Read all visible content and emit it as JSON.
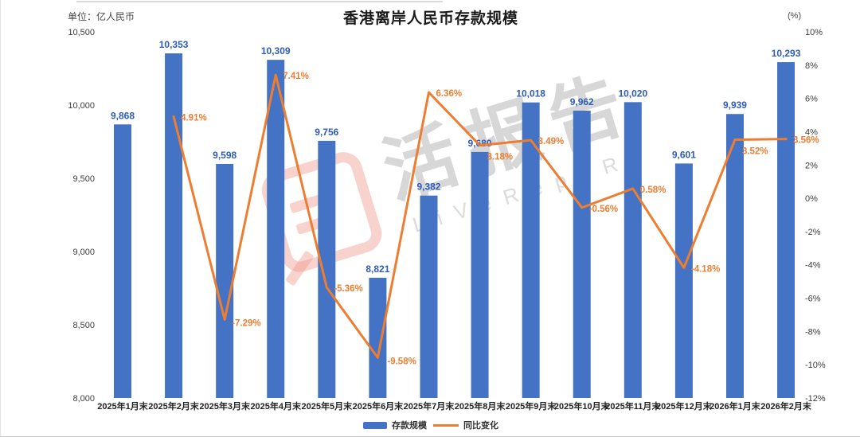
{
  "title": "香港离岸人民币存款规模",
  "unit_label": "单位：亿人民币",
  "right_axis_header": "(%)",
  "watermark": {
    "icon": "livereport-logo",
    "text_cn": "活报告",
    "text_en": "LiVeRepoRt"
  },
  "legend": {
    "bar_label": "存款规模",
    "line_label": "同比变化"
  },
  "colors": {
    "bar": "#4472C4",
    "bar_value_label": "#2E5CB8",
    "line": "#ED7D31",
    "line_value_label": "#ED7D31",
    "axis_text": "#3d3d3d",
    "category_text": "#222222"
  },
  "chart_data": {
    "type": "bar+line combo",
    "title": "香港离岸人民币存款规模",
    "categories": [
      "2025年1月末",
      "2025年2月末",
      "2025年3月末",
      "2025年4月末",
      "2025年5月末",
      "2025年6月末",
      "2025年7月末",
      "2025年8月末",
      "2025年9月末",
      "2025年10月末",
      "2025年11月末",
      "2025年12月末",
      "2026年1月末",
      "2026年2月末"
    ],
    "series": [
      {
        "name": "存款规模",
        "type": "bar",
        "axis": "left",
        "values": [
          9868,
          10353,
          9598,
          10309,
          9756,
          8821,
          9382,
          9680,
          10018,
          9962,
          10020,
          9601,
          9939,
          10293
        ]
      },
      {
        "name": "同比变化",
        "type": "line",
        "axis": "right",
        "values": [
          null,
          4.91,
          -7.29,
          7.41,
          -5.36,
          -9.58,
          6.36,
          3.18,
          3.49,
          -0.56,
          0.58,
          -4.18,
          3.52,
          3.56
        ]
      }
    ],
    "bar_labels": [
      "9,868",
      "10,353",
      "9,598",
      "10,309",
      "9,756",
      "8,821",
      "9,382",
      "9,680",
      "10,018",
      "9,962",
      "10,020",
      "9,601",
      "9,939",
      "10,293"
    ],
    "line_labels": [
      null,
      "4.91%",
      "-7.29%",
      "7.41%",
      "-5.36%",
      "-9.58%",
      "6.36%",
      "3.18%",
      "3.49%",
      "-0.56%",
      "0.58%",
      "-4.18%",
      "3.52%",
      "3.56%"
    ],
    "left_axis": {
      "label": "单位：亿人民币",
      "min": 8000,
      "max": 10500,
      "tick_labels": [
        "10,500",
        "10,000",
        "9,500",
        "9,000",
        "8,500",
        "8,000"
      ],
      "tick_values": [
        10500,
        10000,
        9500,
        9000,
        8500,
        8000
      ]
    },
    "right_axis": {
      "label": "(%)",
      "min": -12,
      "max": 10,
      "tick_labels": [
        "10%",
        "8%",
        "6%",
        "4%",
        "2%",
        "0%",
        "-2%",
        "-4%",
        "-6%",
        "-8%",
        "-10%",
        "-12%"
      ],
      "tick_values": [
        10,
        8,
        6,
        4,
        2,
        0,
        -2,
        -4,
        -6,
        -8,
        -10,
        -12
      ]
    },
    "gridlines": false,
    "legend_position": "bottom-center"
  }
}
